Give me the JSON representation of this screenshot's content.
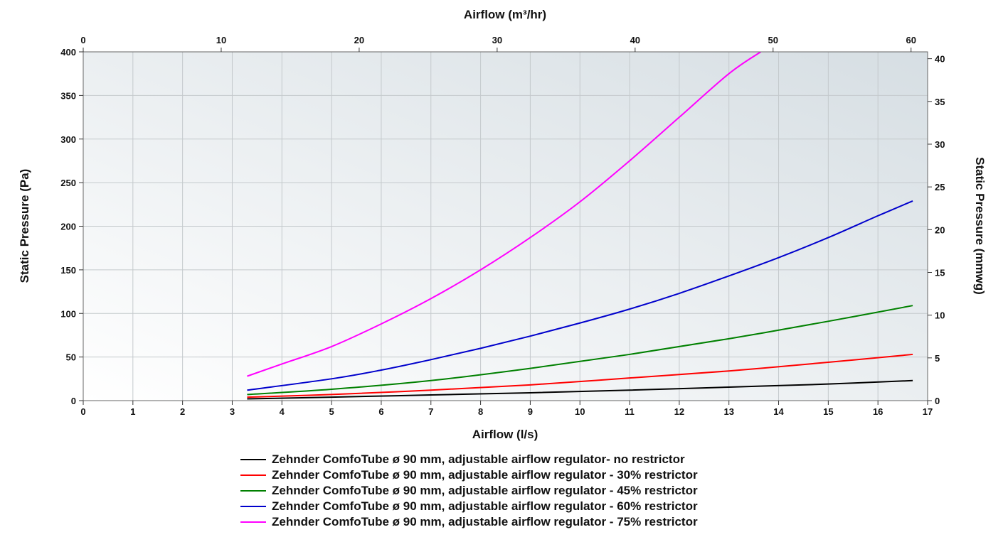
{
  "chart_data": {
    "type": "line",
    "xlabel": "Airflow (l/s)",
    "x2label": "Airflow (m³/hr)",
    "ylabel": "Static Pressure (Pa)",
    "y2label": "Static Pressure (mmwg)",
    "xlim": [
      0,
      17
    ],
    "x2lim": [
      0,
      61.2
    ],
    "ylim": [
      0,
      400
    ],
    "y2lim": [
      0,
      40.8
    ],
    "x_ticks": [
      "0",
      "1",
      "2",
      "3",
      "4",
      "5",
      "6",
      "7",
      "8",
      "9",
      "10",
      "11",
      "12",
      "13",
      "14",
      "15",
      "16",
      "17"
    ],
    "x2_ticks": [
      "0",
      "10",
      "20",
      "30",
      "40",
      "50",
      "60"
    ],
    "y_ticks": [
      "0",
      "50",
      "100",
      "150",
      "200",
      "250",
      "300",
      "350",
      "400"
    ],
    "y2_ticks": [
      "0",
      "5",
      "10",
      "15",
      "20",
      "25",
      "30",
      "35",
      "40"
    ],
    "grid": true,
    "legend_position": "bottom",
    "series": [
      {
        "name": "Zehnder ComfoTube ø 90 mm, adjustable airflow regulator- no restrictor",
        "color": "#000000",
        "x": [
          3.3,
          5,
          7,
          9,
          11,
          13,
          15,
          16.7
        ],
        "y": [
          2,
          4,
          6.5,
          9,
          12,
          15.5,
          19,
          23
        ]
      },
      {
        "name": "Zehnder ComfoTube ø 90 mm, adjustable airflow regulator - 30% restrictor",
        "color": "#ff0000",
        "x": [
          3.3,
          5,
          7,
          9,
          11,
          13,
          15,
          16.7
        ],
        "y": [
          4,
          7,
          12,
          18,
          26,
          34,
          44,
          53
        ]
      },
      {
        "name": "Zehnder ComfoTube ø 90 mm, adjustable airflow regulator - 45% restrictor",
        "color": "#008000",
        "x": [
          3.3,
          5,
          7,
          9,
          11,
          13,
          15,
          16.7
        ],
        "y": [
          7,
          13,
          23,
          37,
          53,
          71,
          91,
          109
        ]
      },
      {
        "name": "Zehnder ComfoTube ø 90 mm, adjustable airflow regulator - 60% restrictor",
        "color": "#0000cc",
        "x": [
          3.3,
          5,
          6,
          7,
          8,
          9,
          10,
          11,
          12,
          13,
          14,
          15,
          16,
          16.7
        ],
        "y": [
          12,
          25,
          35,
          47,
          60,
          74,
          89,
          105,
          123,
          143,
          164,
          187,
          212,
          229
        ]
      },
      {
        "name": "Zehnder ComfoTube ø 90 mm, adjustable airflow regulator - 75% restrictor",
        "color": "#ff00ff",
        "x": [
          3.3,
          4,
          5,
          6,
          7,
          8,
          9,
          10,
          11,
          12,
          13,
          13.64
        ],
        "y": [
          28,
          42,
          62,
          88,
          117,
          150,
          187,
          228,
          275,
          325,
          375,
          400
        ]
      }
    ]
  }
}
